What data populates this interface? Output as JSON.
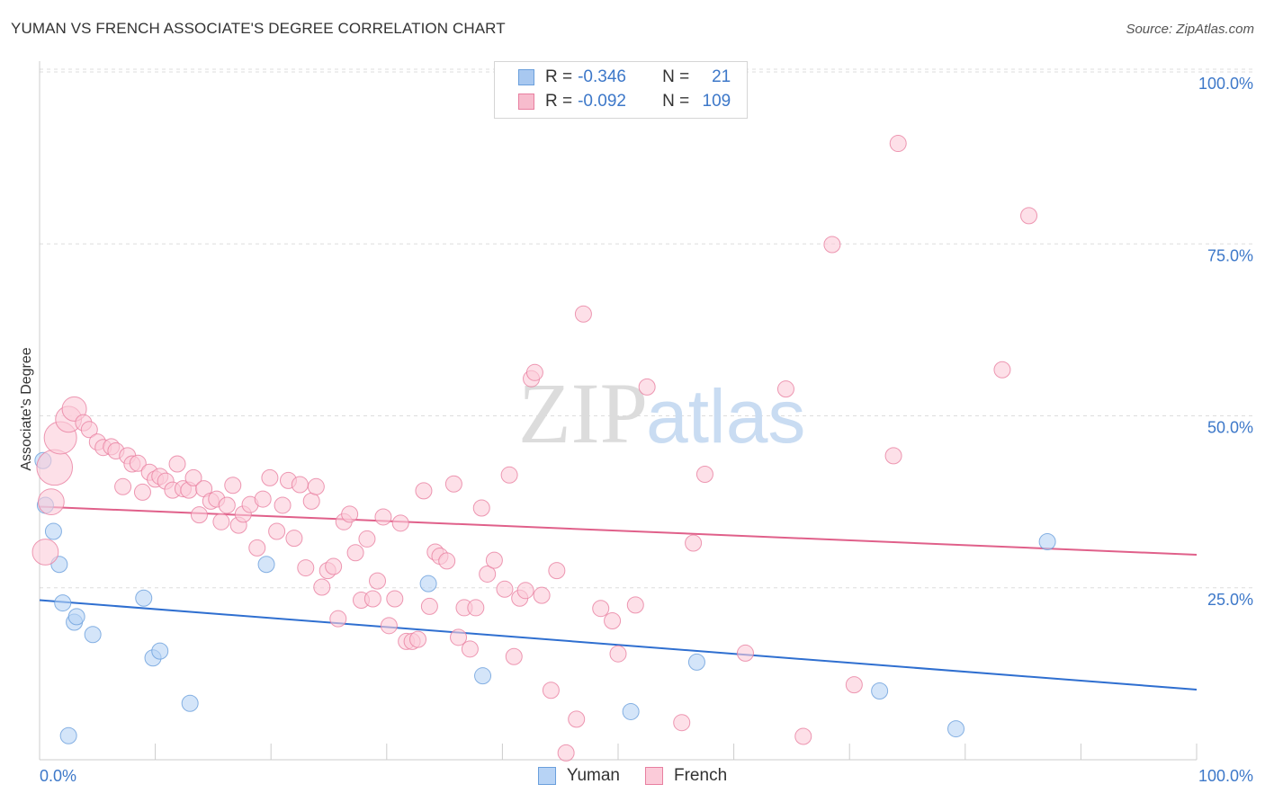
{
  "header": {
    "title": "YUMAN VS FRENCH ASSOCIATE'S DEGREE CORRELATION CHART",
    "source": "Source: ZipAtlas.com"
  },
  "watermark": {
    "zip": "ZIP",
    "atlas": "atlas"
  },
  "legend": {
    "rows": [
      {
        "r_label": "R = ",
        "r_value": "-0.346",
        "n_label": "N = ",
        "n_value": "21",
        "color": "#a8c8f0",
        "stroke": "#6a9fdc"
      },
      {
        "r_label": "R = ",
        "r_value": "-0.092",
        "n_label": "N = ",
        "n_value": "109",
        "color": "#f7bccd",
        "stroke": "#e87fa0"
      }
    ]
  },
  "bottom_legend": [
    {
      "label": "Yuman",
      "color": "#b7d3f5",
      "stroke": "#6a9fdc"
    },
    {
      "label": "French",
      "color": "#fbcbd9",
      "stroke": "#e87fa0"
    }
  ],
  "chart_data": {
    "type": "scatter",
    "title": "YUMAN VS FRENCH ASSOCIATE'S DEGREE CORRELATION CHART",
    "xlabel": "",
    "ylabel": "Associate's Degree",
    "xlim": [
      0,
      100
    ],
    "ylim": [
      0,
      100
    ],
    "x_tick_labels": [
      "0.0%",
      "100.0%"
    ],
    "y_ticks": [
      25,
      50,
      75,
      100
    ],
    "y_tick_labels": [
      "25.0%",
      "50.0%",
      "75.0%",
      "100.0%"
    ],
    "grid": true,
    "series": [
      {
        "name": "Yuman",
        "fill": "#b7d3f5",
        "stroke": "#6a9fdc",
        "trend_color": "#2f6fd0",
        "trend": {
          "x": [
            0,
            100
          ],
          "y": [
            23.2,
            10.2
          ]
        },
        "points": [
          {
            "x": 0.3,
            "y": 43.5,
            "s": 1
          },
          {
            "x": 0.5,
            "y": 37.0,
            "s": 1
          },
          {
            "x": 1.2,
            "y": 33.2,
            "s": 1
          },
          {
            "x": 1.7,
            "y": 28.4,
            "s": 1
          },
          {
            "x": 2.0,
            "y": 22.8,
            "s": 1
          },
          {
            "x": 3.0,
            "y": 20.0,
            "s": 1
          },
          {
            "x": 3.2,
            "y": 20.8,
            "s": 1
          },
          {
            "x": 4.6,
            "y": 18.2,
            "s": 1
          },
          {
            "x": 9.0,
            "y": 23.5,
            "s": 1
          },
          {
            "x": 9.8,
            "y": 14.8,
            "s": 1
          },
          {
            "x": 10.4,
            "y": 15.8,
            "s": 1
          },
          {
            "x": 13.0,
            "y": 8.2,
            "s": 1
          },
          {
            "x": 2.5,
            "y": 3.5,
            "s": 1
          },
          {
            "x": 19.6,
            "y": 28.4,
            "s": 1
          },
          {
            "x": 33.6,
            "y": 25.6,
            "s": 1
          },
          {
            "x": 38.3,
            "y": 12.2,
            "s": 1
          },
          {
            "x": 51.1,
            "y": 7.0,
            "s": 1
          },
          {
            "x": 56.8,
            "y": 14.2,
            "s": 1
          },
          {
            "x": 72.6,
            "y": 10.0,
            "s": 1
          },
          {
            "x": 79.2,
            "y": 4.5,
            "s": 1
          },
          {
            "x": 87.1,
            "y": 31.7,
            "s": 1
          }
        ]
      },
      {
        "name": "French",
        "fill": "#fbcbd9",
        "stroke": "#e87fa0",
        "trend_color": "#e0608a",
        "trend": {
          "x": [
            0,
            100
          ],
          "y": [
            36.8,
            29.8
          ]
        },
        "points": [
          {
            "x": 0.5,
            "y": 30.2,
            "s": 1.6
          },
          {
            "x": 1.0,
            "y": 37.5,
            "s": 1.6
          },
          {
            "x": 1.3,
            "y": 42.5,
            "s": 2.2
          },
          {
            "x": 1.8,
            "y": 46.8,
            "s": 2.0
          },
          {
            "x": 2.5,
            "y": 49.5,
            "s": 1.6
          },
          {
            "x": 3.0,
            "y": 51.0,
            "s": 1.5
          },
          {
            "x": 3.8,
            "y": 49.0,
            "s": 1
          },
          {
            "x": 4.3,
            "y": 48.0,
            "s": 1
          },
          {
            "x": 5.0,
            "y": 46.2,
            "s": 1
          },
          {
            "x": 5.5,
            "y": 45.4,
            "s": 1
          },
          {
            "x": 6.2,
            "y": 45.5,
            "s": 1
          },
          {
            "x": 6.6,
            "y": 44.9,
            "s": 1
          },
          {
            "x": 7.2,
            "y": 39.7,
            "s": 1
          },
          {
            "x": 7.6,
            "y": 44.2,
            "s": 1
          },
          {
            "x": 8.0,
            "y": 43.0,
            "s": 1
          },
          {
            "x": 8.5,
            "y": 43.1,
            "s": 1
          },
          {
            "x": 8.9,
            "y": 38.9,
            "s": 1
          },
          {
            "x": 9.5,
            "y": 41.8,
            "s": 1
          },
          {
            "x": 10.0,
            "y": 40.8,
            "s": 1
          },
          {
            "x": 10.4,
            "y": 41.2,
            "s": 1
          },
          {
            "x": 10.9,
            "y": 40.5,
            "s": 1
          },
          {
            "x": 11.5,
            "y": 39.2,
            "s": 1
          },
          {
            "x": 11.9,
            "y": 43.0,
            "s": 1
          },
          {
            "x": 12.4,
            "y": 39.4,
            "s": 1
          },
          {
            "x": 12.9,
            "y": 39.2,
            "s": 1
          },
          {
            "x": 13.3,
            "y": 41.0,
            "s": 1
          },
          {
            "x": 13.8,
            "y": 35.6,
            "s": 1
          },
          {
            "x": 14.2,
            "y": 39.4,
            "s": 1
          },
          {
            "x": 14.8,
            "y": 37.6,
            "s": 1
          },
          {
            "x": 15.3,
            "y": 37.9,
            "s": 1
          },
          {
            "x": 15.7,
            "y": 34.6,
            "s": 1
          },
          {
            "x": 16.2,
            "y": 37.0,
            "s": 1
          },
          {
            "x": 16.7,
            "y": 39.9,
            "s": 1
          },
          {
            "x": 17.2,
            "y": 34.1,
            "s": 1
          },
          {
            "x": 17.6,
            "y": 35.7,
            "s": 1
          },
          {
            "x": 18.2,
            "y": 37.1,
            "s": 1
          },
          {
            "x": 18.8,
            "y": 30.8,
            "s": 1
          },
          {
            "x": 19.3,
            "y": 37.9,
            "s": 1
          },
          {
            "x": 19.9,
            "y": 41.0,
            "s": 1
          },
          {
            "x": 20.5,
            "y": 33.2,
            "s": 1
          },
          {
            "x": 21.0,
            "y": 37.0,
            "s": 1
          },
          {
            "x": 21.5,
            "y": 40.6,
            "s": 1
          },
          {
            "x": 22.0,
            "y": 32.2,
            "s": 1
          },
          {
            "x": 22.5,
            "y": 40.0,
            "s": 1
          },
          {
            "x": 23.0,
            "y": 27.9,
            "s": 1
          },
          {
            "x": 23.5,
            "y": 37.6,
            "s": 1
          },
          {
            "x": 23.9,
            "y": 39.7,
            "s": 1
          },
          {
            "x": 24.4,
            "y": 25.1,
            "s": 1
          },
          {
            "x": 24.9,
            "y": 27.5,
            "s": 1
          },
          {
            "x": 25.4,
            "y": 28.1,
            "s": 1
          },
          {
            "x": 25.8,
            "y": 20.5,
            "s": 1
          },
          {
            "x": 26.3,
            "y": 34.6,
            "s": 1
          },
          {
            "x": 26.8,
            "y": 35.7,
            "s": 1
          },
          {
            "x": 27.3,
            "y": 30.1,
            "s": 1
          },
          {
            "x": 27.8,
            "y": 23.2,
            "s": 1
          },
          {
            "x": 28.3,
            "y": 32.1,
            "s": 1
          },
          {
            "x": 28.8,
            "y": 23.4,
            "s": 1
          },
          {
            "x": 29.2,
            "y": 26.0,
            "s": 1
          },
          {
            "x": 29.7,
            "y": 35.3,
            "s": 1
          },
          {
            "x": 30.2,
            "y": 19.5,
            "s": 1
          },
          {
            "x": 30.7,
            "y": 23.4,
            "s": 1
          },
          {
            "x": 31.2,
            "y": 34.4,
            "s": 1
          },
          {
            "x": 31.7,
            "y": 17.2,
            "s": 1
          },
          {
            "x": 32.2,
            "y": 17.2,
            "s": 1
          },
          {
            "x": 32.7,
            "y": 17.5,
            "s": 1
          },
          {
            "x": 33.2,
            "y": 39.1,
            "s": 1
          },
          {
            "x": 33.7,
            "y": 22.3,
            "s": 1
          },
          {
            "x": 34.2,
            "y": 30.2,
            "s": 1
          },
          {
            "x": 34.6,
            "y": 29.6,
            "s": 1
          },
          {
            "x": 35.2,
            "y": 28.9,
            "s": 1
          },
          {
            "x": 35.8,
            "y": 40.1,
            "s": 1
          },
          {
            "x": 36.2,
            "y": 17.8,
            "s": 1
          },
          {
            "x": 36.7,
            "y": 22.1,
            "s": 1
          },
          {
            "x": 37.2,
            "y": 16.1,
            "s": 1
          },
          {
            "x": 37.7,
            "y": 22.1,
            "s": 1
          },
          {
            "x": 38.2,
            "y": 36.6,
            "s": 1
          },
          {
            "x": 38.7,
            "y": 27.0,
            "s": 1
          },
          {
            "x": 39.3,
            "y": 29.0,
            "s": 1
          },
          {
            "x": 40.2,
            "y": 24.8,
            "s": 1
          },
          {
            "x": 40.6,
            "y": 41.4,
            "s": 1
          },
          {
            "x": 41.0,
            "y": 15.0,
            "s": 1
          },
          {
            "x": 41.5,
            "y": 23.5,
            "s": 1
          },
          {
            "x": 42.0,
            "y": 24.6,
            "s": 1
          },
          {
            "x": 42.5,
            "y": 55.4,
            "s": 1
          },
          {
            "x": 42.8,
            "y": 56.3,
            "s": 1
          },
          {
            "x": 43.4,
            "y": 23.9,
            "s": 1
          },
          {
            "x": 44.2,
            "y": 10.1,
            "s": 1
          },
          {
            "x": 44.7,
            "y": 27.5,
            "s": 1
          },
          {
            "x": 45.5,
            "y": 1.0,
            "s": 1
          },
          {
            "x": 46.4,
            "y": 5.9,
            "s": 1
          },
          {
            "x": 47.0,
            "y": 64.8,
            "s": 1
          },
          {
            "x": 48.5,
            "y": 22.0,
            "s": 1
          },
          {
            "x": 49.5,
            "y": 20.2,
            "s": 1
          },
          {
            "x": 50.0,
            "y": 15.4,
            "s": 1
          },
          {
            "x": 51.5,
            "y": 22.5,
            "s": 1
          },
          {
            "x": 52.5,
            "y": 54.2,
            "s": 1
          },
          {
            "x": 55.5,
            "y": 5.4,
            "s": 1
          },
          {
            "x": 56.5,
            "y": 31.5,
            "s": 1
          },
          {
            "x": 57.5,
            "y": 41.5,
            "s": 1
          },
          {
            "x": 61.0,
            "y": 15.5,
            "s": 1
          },
          {
            "x": 64.5,
            "y": 53.9,
            "s": 1
          },
          {
            "x": 66.0,
            "y": 3.4,
            "s": 1
          },
          {
            "x": 68.5,
            "y": 74.9,
            "s": 1
          },
          {
            "x": 70.4,
            "y": 10.9,
            "s": 1
          },
          {
            "x": 73.8,
            "y": 44.2,
            "s": 1
          },
          {
            "x": 74.2,
            "y": 89.6,
            "s": 1
          },
          {
            "x": 83.2,
            "y": 56.7,
            "s": 1
          },
          {
            "x": 85.5,
            "y": 79.1,
            "s": 1
          }
        ]
      }
    ]
  }
}
